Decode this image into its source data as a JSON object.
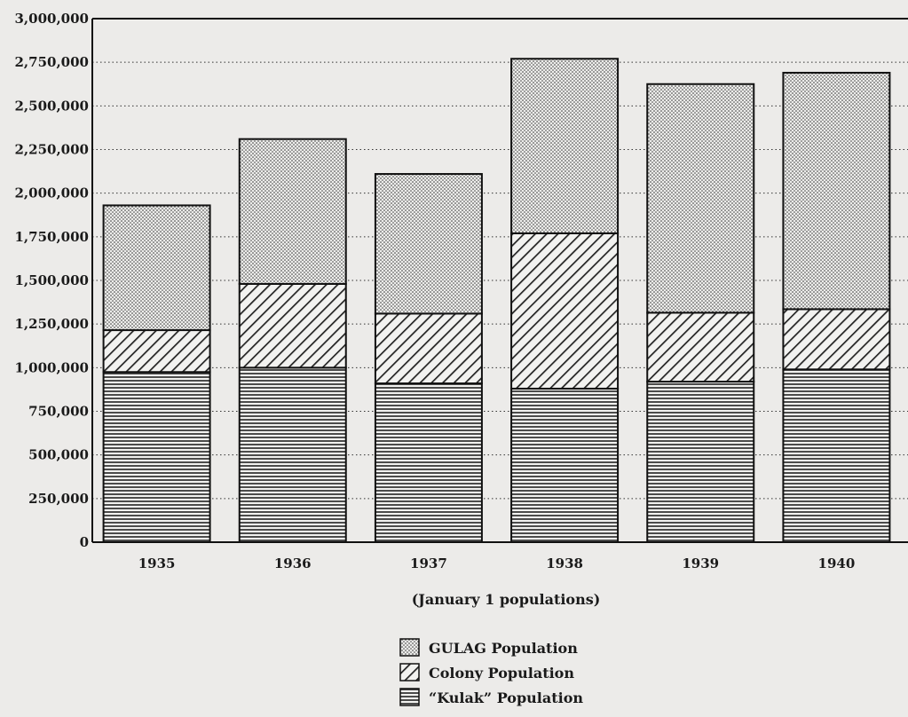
{
  "chart_data": {
    "type": "bar",
    "stacked": true,
    "title": "",
    "xlabel": "(January 1 populations)",
    "ylabel": "",
    "ylim": [
      0,
      3000000
    ],
    "yticks": [
      0,
      250000,
      500000,
      750000,
      1000000,
      1250000,
      1500000,
      1750000,
      2000000,
      2250000,
      2500000,
      2750000,
      3000000
    ],
    "ytick_labels": [
      "0",
      "250,000",
      "500,000",
      "750,000",
      "1,000,000",
      "1,250,000",
      "1,500,000",
      "1,750,000",
      "2,000,000",
      "2,250,000",
      "2,500,000",
      "2,750,000",
      "3,000,000"
    ],
    "grid": "horizontal dotted",
    "legend_position": "bottom-center",
    "categories": [
      "1935",
      "1936",
      "1937",
      "1938",
      "1939",
      "1940"
    ],
    "series": [
      {
        "name": "“Kulak” Population",
        "pattern": "horizontal-lines",
        "values": [
          975000,
          1000000,
          910000,
          880000,
          920000,
          990000
        ]
      },
      {
        "name": "Colony Population",
        "pattern": "diagonal-hatch",
        "values": [
          240000,
          480000,
          400000,
          890000,
          395000,
          345000
        ]
      },
      {
        "name": "GULAG Population",
        "pattern": "stipple",
        "values": [
          715000,
          830000,
          800000,
          1000000,
          1310000,
          1355000
        ]
      }
    ],
    "legend_order": [
      "GULAG Population",
      "Colony Population",
      "“Kulak” Population"
    ]
  }
}
